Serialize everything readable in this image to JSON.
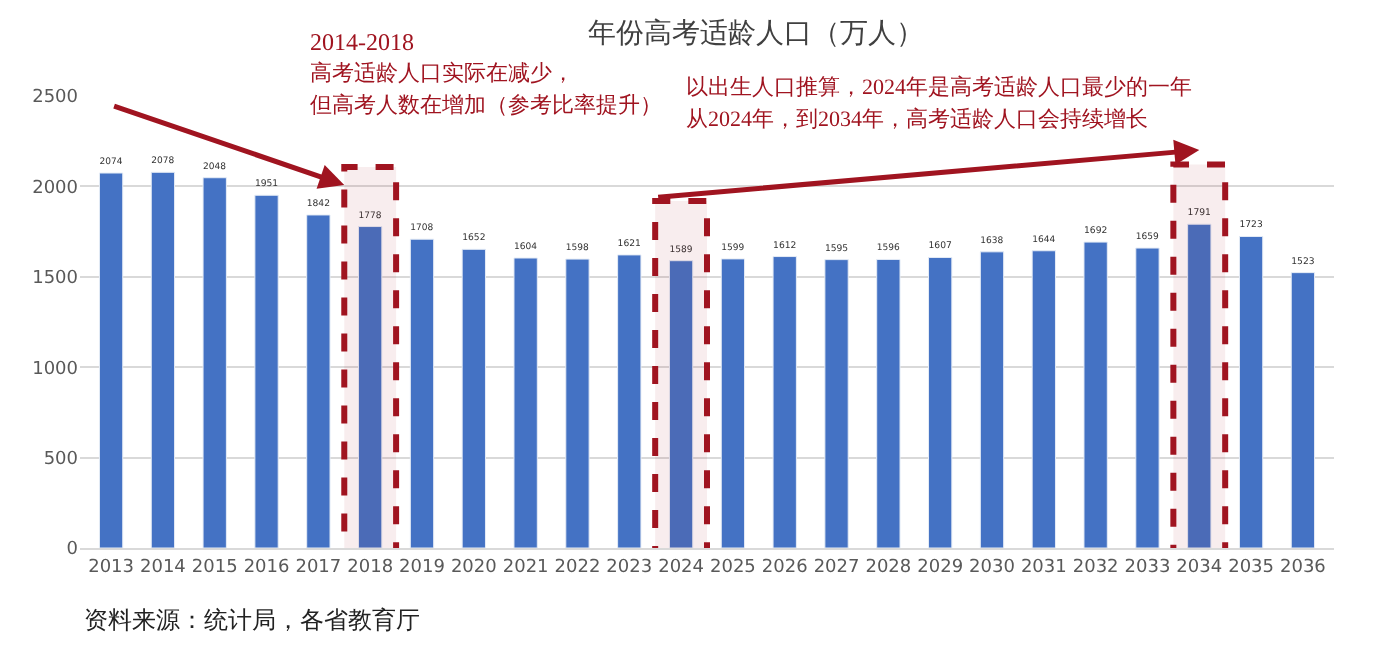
{
  "chart_data": {
    "type": "bar",
    "title": "年份高考适龄人口（万人）",
    "categories": [
      "2013",
      "2014",
      "2015",
      "2016",
      "2017",
      "2018",
      "2019",
      "2020",
      "2021",
      "2022",
      "2023",
      "2024",
      "2025",
      "2026",
      "2027",
      "2028",
      "2029",
      "2030",
      "2031",
      "2032",
      "2033",
      "2034",
      "2035",
      "2036"
    ],
    "values": [
      2074,
      2078,
      2048,
      1951,
      1842,
      1778,
      1708,
      1652,
      1604,
      1598,
      1621,
      1589,
      1599,
      1612,
      1595,
      1596,
      1607,
      1638,
      1644,
      1692,
      1659,
      1791,
      1723,
      1523
    ],
    "color": "#4472c4",
    "ylim": [
      0,
      2500
    ],
    "yticks": [
      0,
      500,
      1000,
      1500,
      2000,
      2500
    ],
    "grid": "y",
    "data_labels": true,
    "bands": [
      {
        "axis": "x",
        "from": "2018",
        "to": "2018",
        "color": "#a01420"
      },
      {
        "axis": "x",
        "from": "2024",
        "to": "2024",
        "color": "#a01420"
      },
      {
        "axis": "x",
        "from": "2034",
        "to": "2034",
        "color": "#a01420"
      }
    ],
    "annotations": [
      "2014-2018",
      "高考适龄人口实际在减少，",
      "但高考人数在增加（参考比率提升）",
      "以出生人口推算，2024年是高考适龄人口最少的一年",
      "从2024年，到2034年，高考适龄人口会持续增长",
      "资料来源：统计局，各省教育厅"
    ]
  }
}
